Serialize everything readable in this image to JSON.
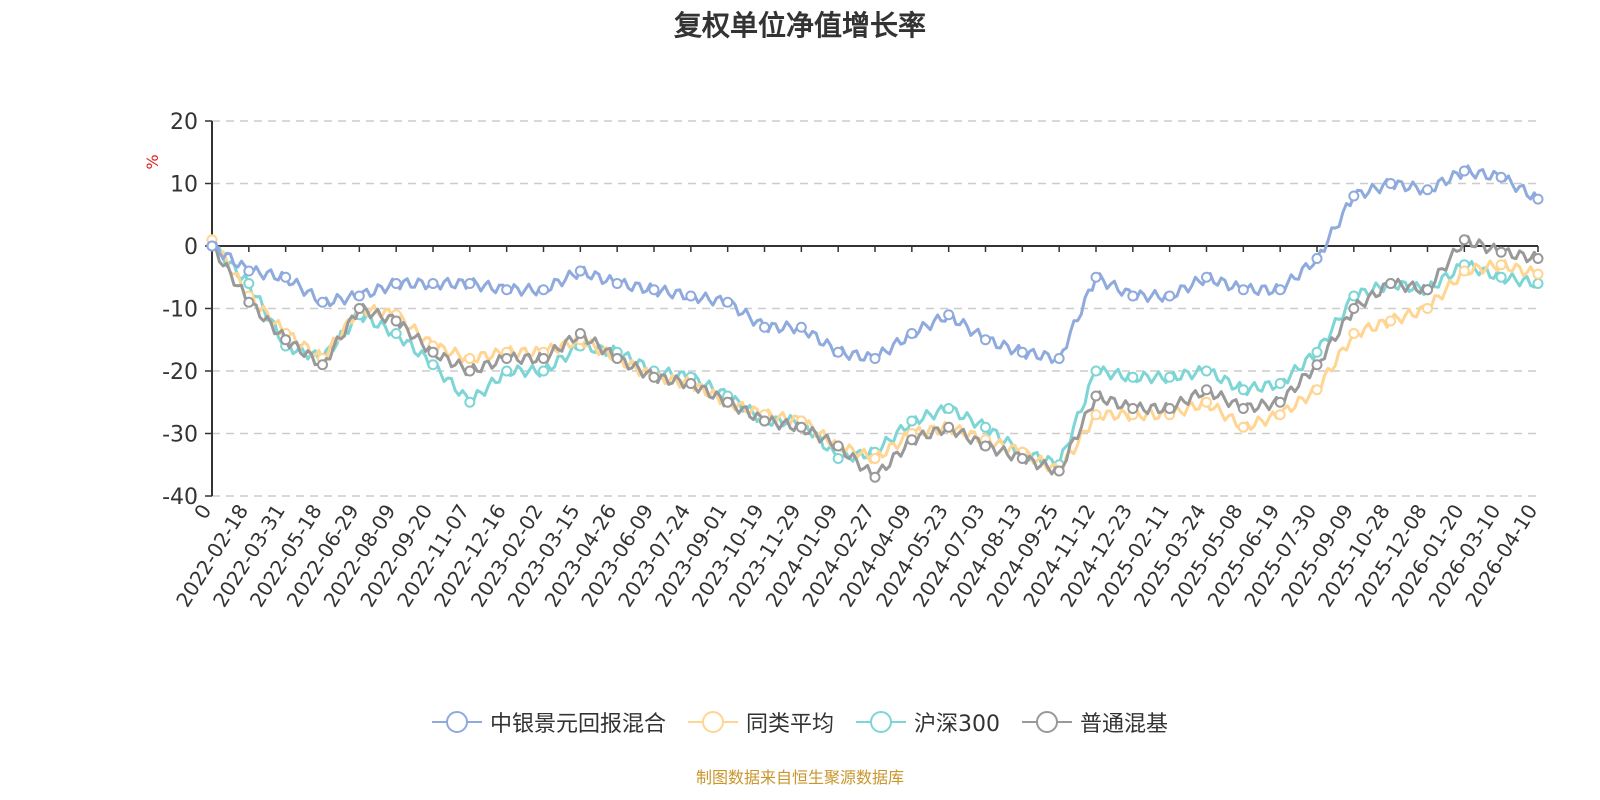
{
  "chart_data": {
    "type": "line",
    "title": "复权单位净值增长率",
    "ylabel": "%",
    "ylim": [
      -40,
      20
    ],
    "yticks": [
      20,
      10,
      0,
      -10,
      -20,
      -30,
      -40
    ],
    "grid": true,
    "legend_position": "bottom",
    "x_labels": [
      "0",
      "2022-02-18",
      "2022-03-31",
      "2022-05-18",
      "2022-06-29",
      "2022-08-09",
      "2022-09-20",
      "2022-11-07",
      "2022-12-16",
      "2023-02-02",
      "2023-03-15",
      "2023-04-26",
      "2023-06-09",
      "2023-07-24",
      "2023-09-01",
      "2023-10-19",
      "2023-11-29",
      "2024-01-09",
      "2024-02-27",
      "2024-04-09",
      "2024-05-23",
      "2024-07-03",
      "2024-08-13",
      "2024-09-25",
      "2024-11-12",
      "2024-12-23",
      "2025-02-11",
      "2025-03-24",
      "2025-05-08",
      "2025-06-19",
      "2025-07-30",
      "2025-09-09",
      "2025-10-28",
      "2025-12-08",
      "2026-01-20",
      "2026-03-10",
      "2026-04-10"
    ],
    "series": [
      {
        "name": "中银景元回报混合",
        "color": "#8faadc",
        "values": [
          0,
          -4,
          -5,
          -9,
          -8,
          -6,
          -6,
          -6,
          -7,
          -7,
          -4,
          -6,
          -7,
          -8,
          -9,
          -13,
          -13,
          -17,
          -18,
          -14,
          -11,
          -15,
          -17,
          -18,
          -5,
          -8,
          -8,
          -5,
          -7,
          -7,
          -2,
          8,
          10,
          9,
          12,
          11,
          7.5
        ]
      },
      {
        "name": "同类平均",
        "color": "#ffd591",
        "values": [
          1,
          -8,
          -14,
          -18,
          -10,
          -11,
          -16,
          -18,
          -17,
          -17,
          -15,
          -18,
          -21,
          -22,
          -25,
          -27,
          -28,
          -32,
          -34,
          -30,
          -29,
          -31,
          -33,
          -36,
          -27,
          -27,
          -27,
          -25,
          -29,
          -27,
          -23,
          -14,
          -12,
          -10,
          -4,
          -3,
          -4.5
        ]
      },
      {
        "name": "沪深300",
        "color": "#7dd5d5",
        "values": [
          0,
          -6,
          -16,
          -18,
          -11,
          -14,
          -19,
          -25,
          -20,
          -20,
          -16,
          -17,
          -20,
          -21,
          -24,
          -28,
          -28,
          -34,
          -33,
          -28,
          -26,
          -29,
          -33,
          -35,
          -20,
          -21,
          -21,
          -20,
          -23,
          -22,
          -17,
          -8,
          -6,
          -7,
          -3,
          -5,
          -6
        ]
      },
      {
        "name": "普通混基",
        "color": "#999999",
        "values": [
          0,
          -9,
          -15,
          -19,
          -10,
          -12,
          -17,
          -20,
          -18,
          -18,
          -14,
          -18,
          -21,
          -22,
          -25,
          -28,
          -29,
          -32,
          -37,
          -31,
          -29,
          -32,
          -34,
          -36,
          -24,
          -26,
          -26,
          -23,
          -26,
          -25,
          -19,
          -10,
          -6,
          -7,
          1,
          -1,
          -2
        ]
      }
    ]
  },
  "source_note": "制图数据来自恒生聚源数据库"
}
